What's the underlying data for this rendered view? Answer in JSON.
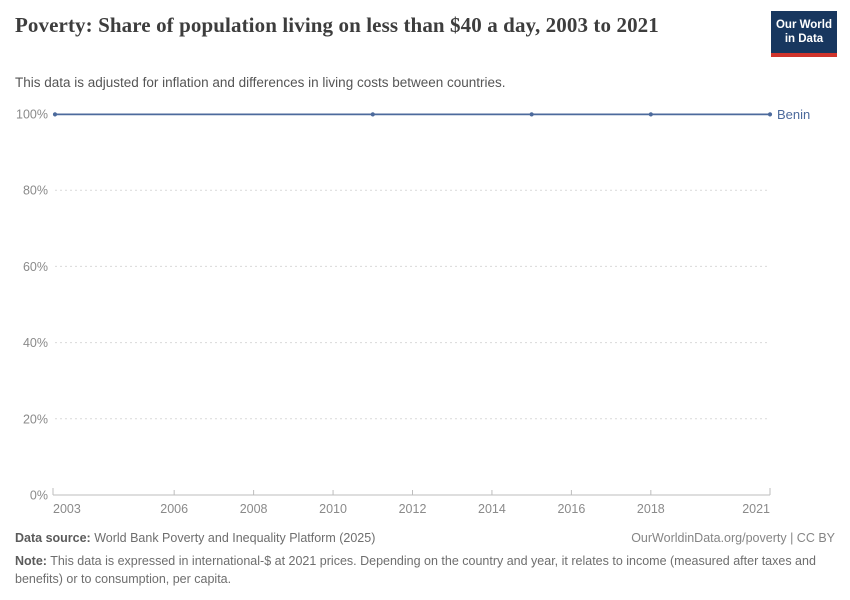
{
  "header": {
    "title": "Poverty: Share of population living on less than $40 a day, 2003 to 2021",
    "subtitle": "This data is adjusted for inflation and differences in living costs between countries.",
    "logo_line1": "Our World",
    "logo_line2": "in Data"
  },
  "chart_data": {
    "type": "line",
    "title": "Poverty: Share of population living on less than $40 a day, 2003 to 2021",
    "series": [
      {
        "name": "Benin",
        "color": "#4C6A9C",
        "x": [
          2003,
          2011,
          2015,
          2018,
          2021
        ],
        "values": [
          99.9,
          99.9,
          99.9,
          99.9,
          99.9
        ]
      }
    ],
    "xlabel": "",
    "ylabel": "",
    "xlim": [
      2003,
      2021
    ],
    "ylim": [
      0,
      100
    ],
    "x_ticks": [
      2003,
      2006,
      2008,
      2010,
      2012,
      2014,
      2016,
      2018,
      2021
    ],
    "x_tick_labels": [
      "2003",
      "2006",
      "2008",
      "2010",
      "2012",
      "2014",
      "2016",
      "2018",
      "2021"
    ],
    "y_ticks": [
      0,
      20,
      40,
      60,
      80,
      100
    ],
    "y_tick_labels": [
      "0%",
      "20%",
      "40%",
      "60%",
      "80%",
      "100%"
    ],
    "grid": "horizontal-dashed",
    "legend_position": "line-end-label",
    "colors": {
      "grid": "#d9d9d9",
      "axis": "#bdbdbd",
      "tick_text": "#8a8a8a",
      "series": "#4C6A9C"
    }
  },
  "footer": {
    "data_source_label": "Data source:",
    "data_source_text": " World Bank Poverty and Inequality Platform (2025)",
    "link_text": "OurWorldinData.org/poverty | CC BY",
    "note_label": "Note:",
    "note_text": " This data is expressed in international-$ at 2021 prices. Depending on the country and year, it relates to income (measured after taxes and benefits) or to consumption, per capita."
  }
}
